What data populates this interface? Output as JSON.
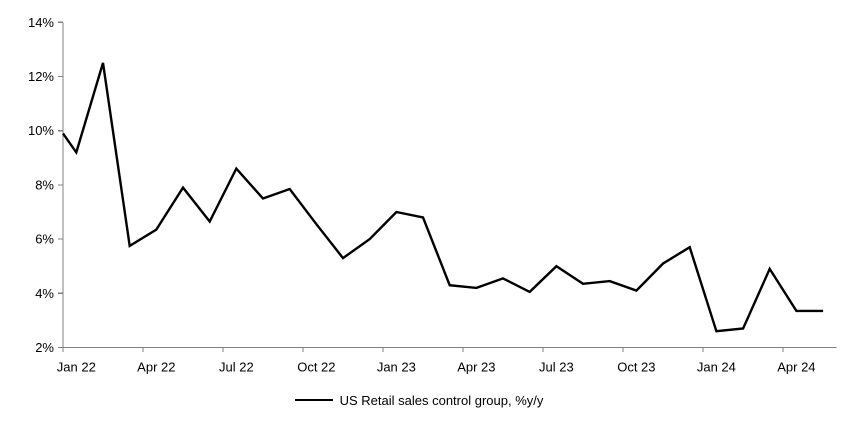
{
  "chart_data": {
    "type": "line",
    "title": "",
    "legend": "US Retail sales control group, %y/y",
    "legend_position": "bottom-center",
    "grid": "off",
    "background": "#ffffff",
    "series_color": "#000000",
    "axis_color": "#808080",
    "text_color": "#000000",
    "ylim": [
      2,
      14
    ],
    "y_ticks": [
      {
        "value": 2,
        "label": "2%"
      },
      {
        "value": 4,
        "label": "4%"
      },
      {
        "value": 6,
        "label": "6%"
      },
      {
        "value": 8,
        "label": "8%"
      },
      {
        "value": 10,
        "label": "10%"
      },
      {
        "value": 12,
        "label": "12%"
      },
      {
        "value": 14,
        "label": "14%"
      }
    ],
    "x_ticks": [
      {
        "index": 0,
        "label": "Jan 22"
      },
      {
        "index": 3,
        "label": "Apr 22"
      },
      {
        "index": 6,
        "label": "Jul 22"
      },
      {
        "index": 9,
        "label": "Oct 22"
      },
      {
        "index": 12,
        "label": "Jan 23"
      },
      {
        "index": 15,
        "label": "Apr 23"
      },
      {
        "index": 18,
        "label": "Jul 23"
      },
      {
        "index": 21,
        "label": "Oct 23"
      },
      {
        "index": 24,
        "label": "Jan 24"
      },
      {
        "index": 27,
        "label": "Apr 24"
      }
    ],
    "categories": [
      "Jan 22",
      "Feb 22",
      "Mar 22",
      "Apr 22",
      "May 22",
      "Jun 22",
      "Jul 22",
      "Aug 22",
      "Sep 22",
      "Oct 22",
      "Nov 22",
      "Dec 22",
      "Jan 23",
      "Feb 23",
      "Mar 23",
      "Apr 23",
      "May 23",
      "Jun 23",
      "Jul 23",
      "Aug 23",
      "Sep 23",
      "Oct 23",
      "Nov 23",
      "Dec 23",
      "Jan 24",
      "Feb 24",
      "Mar 24",
      "Apr 24",
      "May 24"
    ],
    "values": [
      9.2,
      12.5,
      5.75,
      6.35,
      7.9,
      6.65,
      8.6,
      7.5,
      7.85,
      6.55,
      5.3,
      6.0,
      7.0,
      6.8,
      4.3,
      4.2,
      4.55,
      4.05,
      5.0,
      4.35,
      4.45,
      4.1,
      5.1,
      5.7,
      2.6,
      2.7,
      4.9,
      3.35,
      3.35
    ],
    "axis_entry_value": 9.9
  }
}
